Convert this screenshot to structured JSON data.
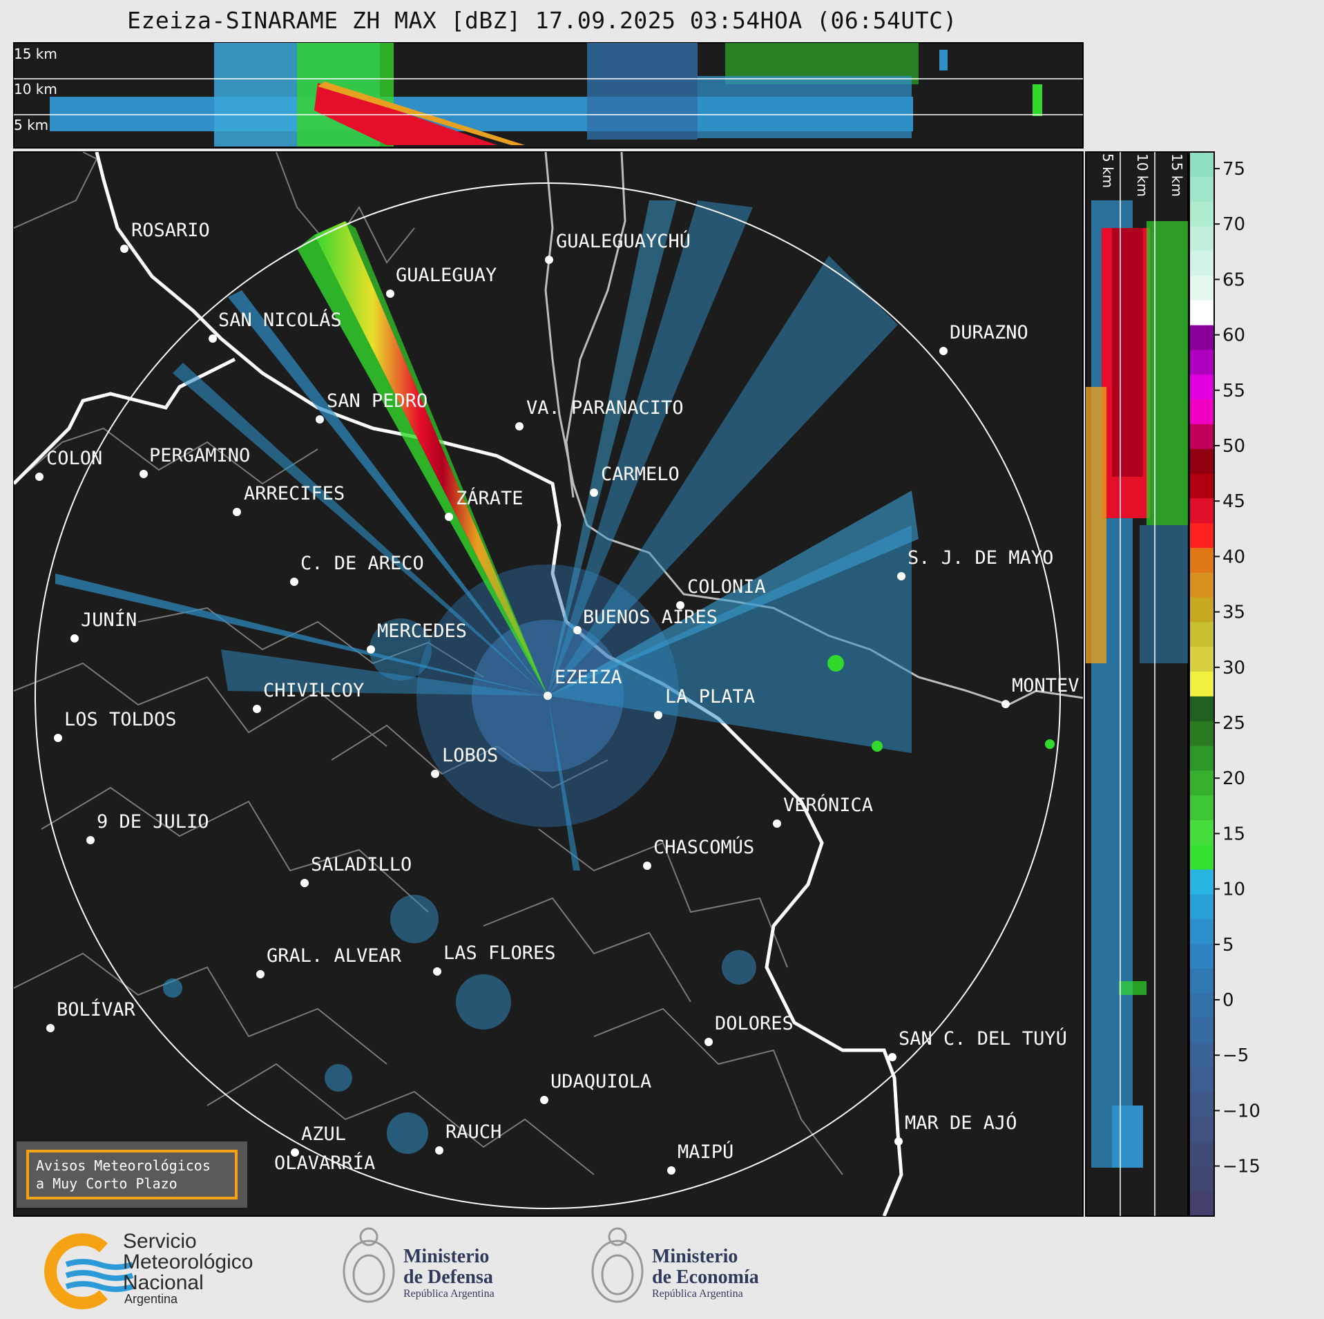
{
  "title": "Ezeiza-SINARAME ZH MAX [dBZ] 17.09.2025 03:54HOA (06:54UTC)",
  "height_labels_top": [
    "15 km",
    "10 km",
    "5 km"
  ],
  "height_labels_side": [
    "5 km",
    "10 km",
    "15 km"
  ],
  "colorbar": {
    "ticks": [
      "75",
      "70",
      "65",
      "60",
      "55",
      "50",
      "45",
      "40",
      "35",
      "30",
      "25",
      "20",
      "15",
      "10",
      "5",
      "0",
      "−5",
      "−10",
      "−15"
    ]
  },
  "cities": [
    {
      "name": "ROSARIO"
    },
    {
      "name": "GUALEGUAYCHÚ"
    },
    {
      "name": "GUALEGUAY"
    },
    {
      "name": "SAN NICOLÁS"
    },
    {
      "name": "DURAZNO"
    },
    {
      "name": "SAN PEDRO"
    },
    {
      "name": "VA. PARANACITO"
    },
    {
      "name": "COLON"
    },
    {
      "name": "PERGAMINO"
    },
    {
      "name": "CARMELO"
    },
    {
      "name": "ARRECIFES"
    },
    {
      "name": "ZÁRATE"
    },
    {
      "name": "S. J. DE MAYO"
    },
    {
      "name": "C. DE ARECO"
    },
    {
      "name": "COLONIA"
    },
    {
      "name": "JUNÍN"
    },
    {
      "name": "BUENOS AIRES"
    },
    {
      "name": "MERCEDES"
    },
    {
      "name": "EZEIZA"
    },
    {
      "name": "MONTEV"
    },
    {
      "name": "CHIVILCOY"
    },
    {
      "name": "LA PLATA"
    },
    {
      "name": "LOS TOLDOS"
    },
    {
      "name": "LOBOS"
    },
    {
      "name": "VERÓNICA"
    },
    {
      "name": "9 DE JULIO"
    },
    {
      "name": "CHASCOMÚS"
    },
    {
      "name": "SALADILLO"
    },
    {
      "name": "GRAL. ALVEAR"
    },
    {
      "name": "LAS FLORES"
    },
    {
      "name": "BOLÍVAR"
    },
    {
      "name": "DOLORES"
    },
    {
      "name": "SAN C. DEL TUYÚ"
    },
    {
      "name": "UDAQUIOLA"
    },
    {
      "name": "MAR DE AJÓ"
    },
    {
      "name": "RAUCH"
    },
    {
      "name": "AZUL"
    },
    {
      "name": "OLAVARRÍA"
    },
    {
      "name": "MAIPÚ"
    }
  ],
  "alert": {
    "line1": "Avisos Meteorológicos",
    "line2": "a Muy Corto Plazo"
  },
  "logos": {
    "smn": {
      "line1": "Servicio",
      "line2": "Meteorológico",
      "line3": "Nacional",
      "sub": "Argentina"
    },
    "defensa": {
      "line1": "Ministerio",
      "line2": "de Defensa",
      "sub": "República Argentina"
    },
    "economia": {
      "line1": "Ministerio",
      "line2": "de Economía",
      "sub": "República Argentina"
    }
  },
  "colors": {
    "panel_bg": "#1c1c1c",
    "page_bg": "#e8e8e8",
    "range_ring": "#ffffff",
    "coast": "#ffffff",
    "admin_borders": "#7a7a7a",
    "alert_border": "#f5a314"
  }
}
